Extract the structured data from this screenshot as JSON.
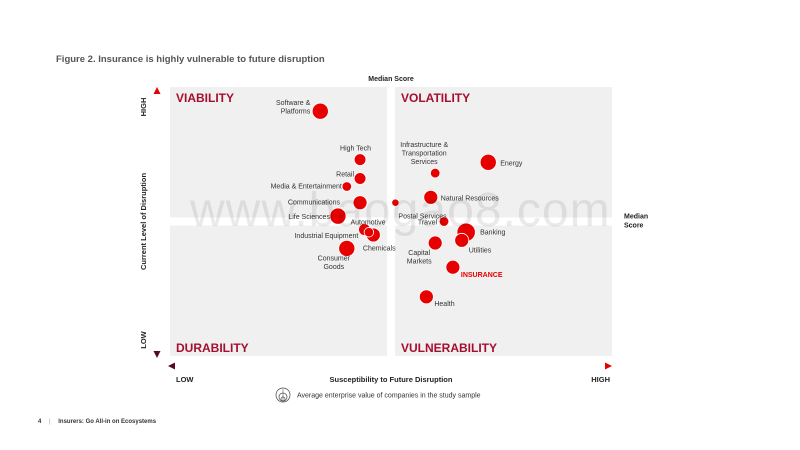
{
  "figure_title": "Figure 2. Insurance is highly vulnerable to future disruption",
  "watermark": "www.baogao8.com",
  "footer": {
    "page": "4",
    "separator": "|",
    "doc_title": "Insurers: Go All-in on Ecosystems"
  },
  "colors": {
    "accent": "#e60000",
    "quad_bg": "#f0f0f0",
    "quad_label": "#a50e2f"
  },
  "chart_data": {
    "type": "scatter",
    "title": "Figure 2. Insurance is highly vulnerable to future disruption",
    "xlabel": "Susceptibility to Future Disruption",
    "ylabel": "Current Level of Disruption",
    "x_tick_low": "LOW",
    "x_tick_high": "HIGH",
    "y_tick_low": "LOW",
    "y_tick_high": "HIGH",
    "median_x_label": "Median Score",
    "median_y_label": "Median Score",
    "xlim": [
      0,
      1
    ],
    "ylim": [
      0,
      1
    ],
    "median_x": 0.5,
    "median_y": 0.5,
    "quadrants": {
      "top_left": "VIABILITY",
      "top_right": "VOLATILITY",
      "bottom_left": "DURABILITY",
      "bottom_right": "VULNERABILITY"
    },
    "size_legend": "Average enterprise value of companies in the study sample",
    "points": [
      {
        "name": "Software & Platforms",
        "x": 0.34,
        "y": 0.91,
        "size": 3
      },
      {
        "name": "High Tech",
        "x": 0.43,
        "y": 0.73,
        "size": 2
      },
      {
        "name": "Retail",
        "x": 0.43,
        "y": 0.66,
        "size": 2
      },
      {
        "name": "Media & Entertainment",
        "x": 0.4,
        "y": 0.63,
        "size": 1.5
      },
      {
        "name": "Communications",
        "x": 0.43,
        "y": 0.57,
        "size": 2.5
      },
      {
        "name": "Life Sciences",
        "x": 0.38,
        "y": 0.52,
        "size": 3
      },
      {
        "name": "Automotive",
        "x": 0.44,
        "y": 0.47,
        "size": 2
      },
      {
        "name": "Industrial Equipment",
        "x": 0.46,
        "y": 0.45,
        "size": 2.5
      },
      {
        "name": "Chemicals",
        "x": 0.45,
        "y": 0.46,
        "size": 1.5
      },
      {
        "name": "Consumer Goods",
        "x": 0.4,
        "y": 0.4,
        "size": 3
      },
      {
        "name": "Infrastructure & Transportation Services",
        "x": 0.6,
        "y": 0.68,
        "size": 1.5
      },
      {
        "name": "Energy",
        "x": 0.72,
        "y": 0.72,
        "size": 3
      },
      {
        "name": "Natural Resources",
        "x": 0.59,
        "y": 0.59,
        "size": 2.5
      },
      {
        "name": "Postal Services",
        "x": 0.51,
        "y": 0.57,
        "size": 1
      },
      {
        "name": "Travel",
        "x": 0.62,
        "y": 0.5,
        "size": 1.5
      },
      {
        "name": "Banking",
        "x": 0.67,
        "y": 0.46,
        "size": 3.5
      },
      {
        "name": "Utilities",
        "x": 0.66,
        "y": 0.43,
        "size": 2.5
      },
      {
        "name": "Capital Markets",
        "x": 0.6,
        "y": 0.42,
        "size": 2.5
      },
      {
        "name": "INSURANCE",
        "x": 0.64,
        "y": 0.33,
        "size": 2.5,
        "highlight": true
      },
      {
        "name": "Health",
        "x": 0.58,
        "y": 0.22,
        "size": 2.5
      }
    ]
  }
}
